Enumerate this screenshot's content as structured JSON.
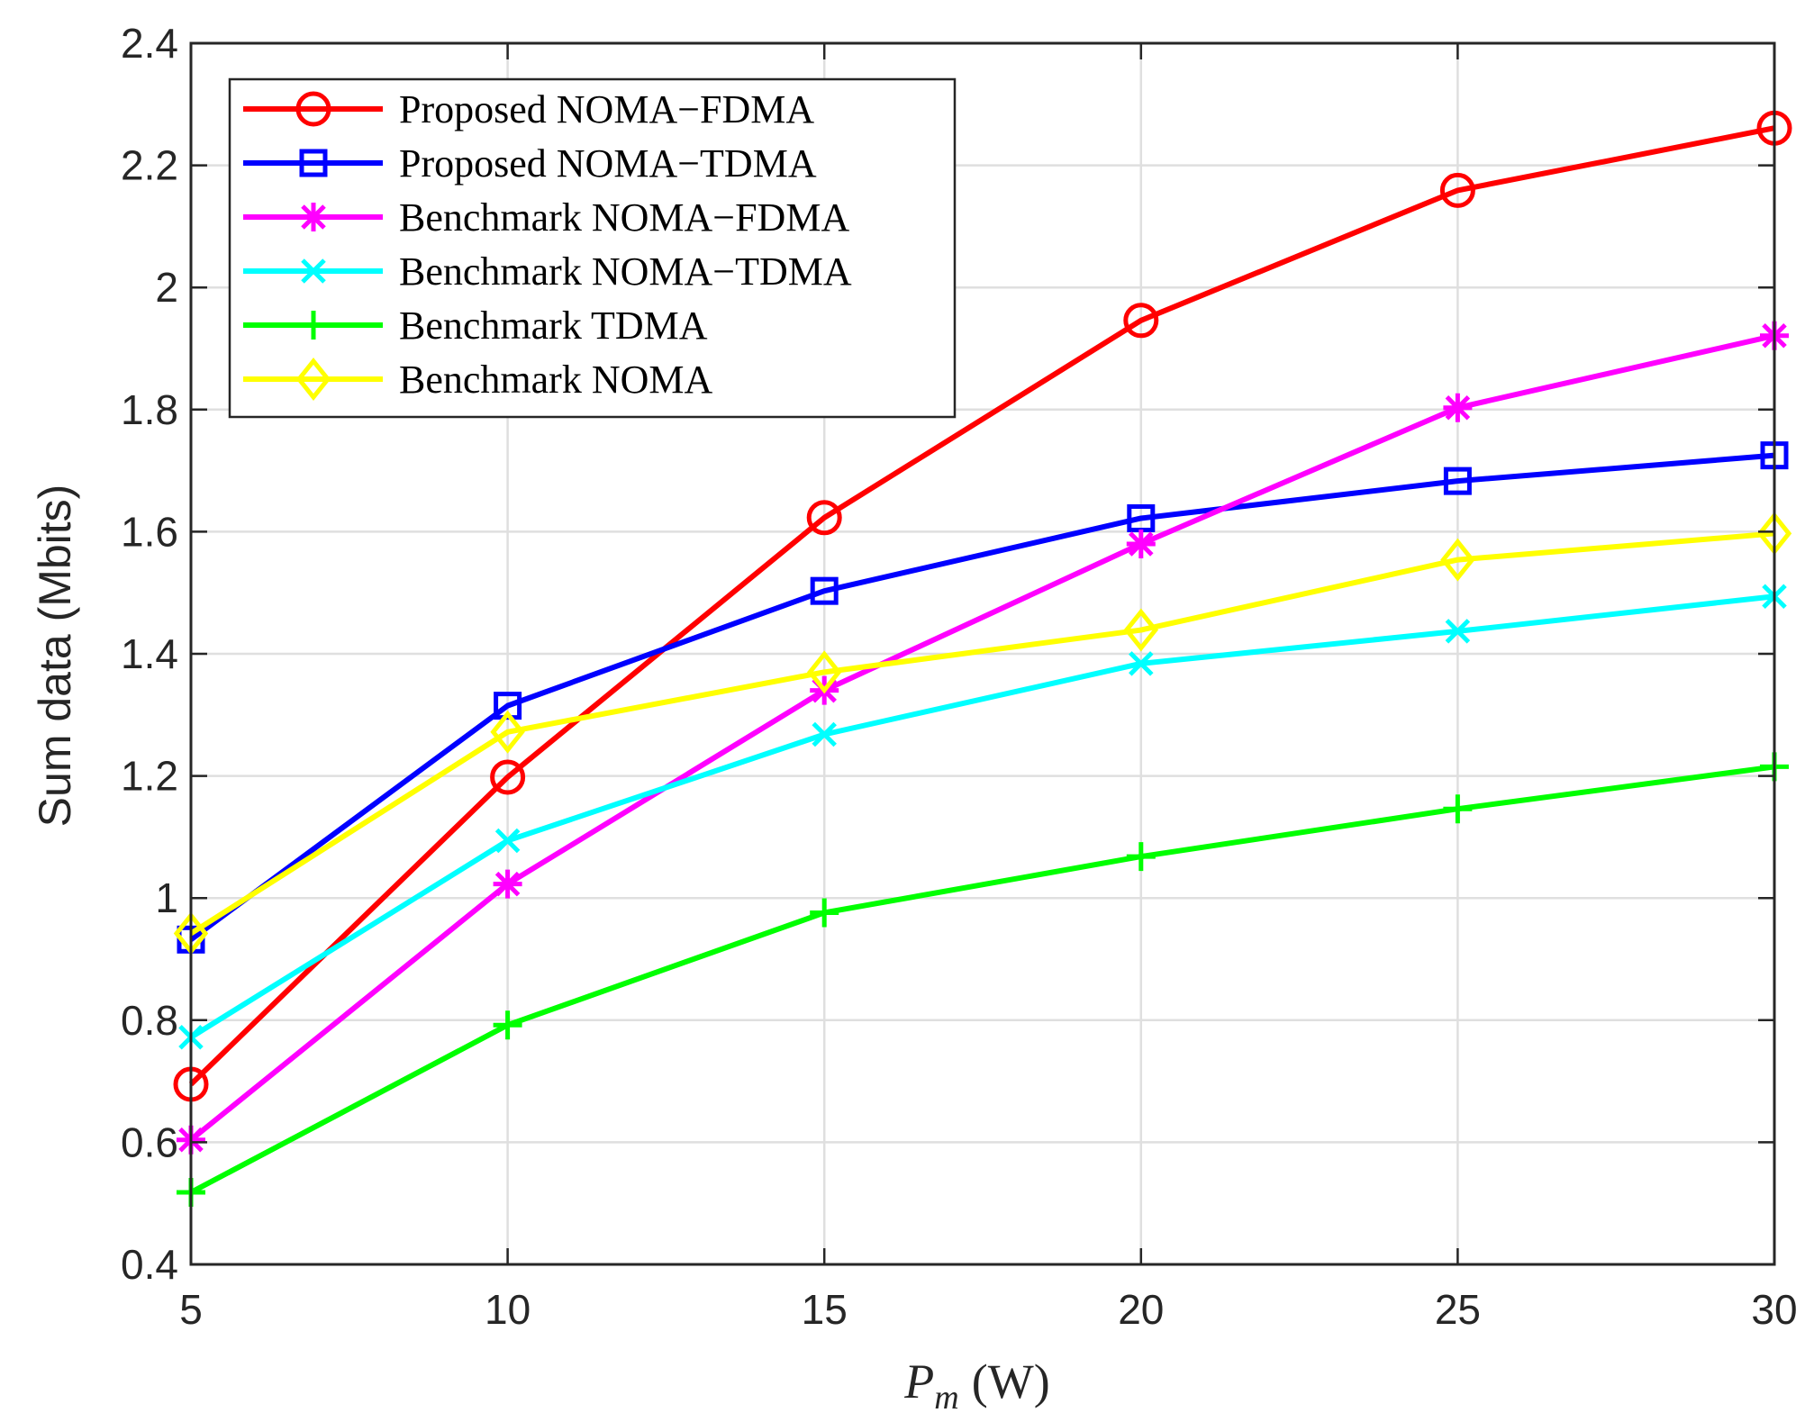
{
  "chart_data": {
    "type": "line",
    "title": "",
    "xlabel": "P_m (W)",
    "xlabel_parts": {
      "main": "P",
      "subscript": "m",
      "unit": "(W)"
    },
    "ylabel": "Sum data (Mbits)",
    "x": [
      5,
      10,
      15,
      20,
      25,
      30
    ],
    "xlim": [
      5,
      30
    ],
    "ylim": [
      0.4,
      2.4
    ],
    "xticks": [
      5,
      10,
      15,
      20,
      25,
      30
    ],
    "xtick_labels": [
      "5",
      "10",
      "15",
      "20",
      "25",
      "30"
    ],
    "yticks": [
      0.4,
      0.6,
      0.8,
      1.0,
      1.2,
      1.4,
      1.6,
      1.8,
      2.0,
      2.2,
      2.4
    ],
    "ytick_labels": [
      "0.4",
      "0.6",
      "0.8",
      "1",
      "1.2",
      "1.4",
      "1.6",
      "1.8",
      "2",
      "2.2",
      "2.4"
    ],
    "grid": true,
    "legend_position": "top-left",
    "series": [
      {
        "name": "Proposed NOMA−FDMA",
        "color": "#ff0000",
        "marker": "circle",
        "values": [
          0.695,
          1.198,
          1.623,
          1.946,
          2.159,
          2.261
        ]
      },
      {
        "name": "Proposed NOMA−TDMA",
        "color": "#0000ff",
        "marker": "square",
        "values": [
          0.932,
          1.315,
          1.503,
          1.622,
          1.683,
          1.725
        ]
      },
      {
        "name": "Benchmark NOMA−FDMA",
        "color": "#ff00ff",
        "marker": "asterisk",
        "values": [
          0.604,
          1.023,
          1.34,
          1.58,
          1.803,
          1.921
        ]
      },
      {
        "name": "Benchmark NOMA−TDMA",
        "color": "#00ffff",
        "marker": "x",
        "values": [
          0.772,
          1.094,
          1.268,
          1.384,
          1.437,
          1.494
        ]
      },
      {
        "name": "Benchmark TDMA",
        "color": "#00ff00",
        "marker": "plus",
        "values": [
          0.518,
          0.792,
          0.976,
          1.068,
          1.146,
          1.215
        ]
      },
      {
        "name": "Benchmark NOMA",
        "color": "#ffff00",
        "marker": "diamond",
        "values": [
          0.942,
          1.272,
          1.37,
          1.439,
          1.554,
          1.597
        ]
      }
    ]
  }
}
